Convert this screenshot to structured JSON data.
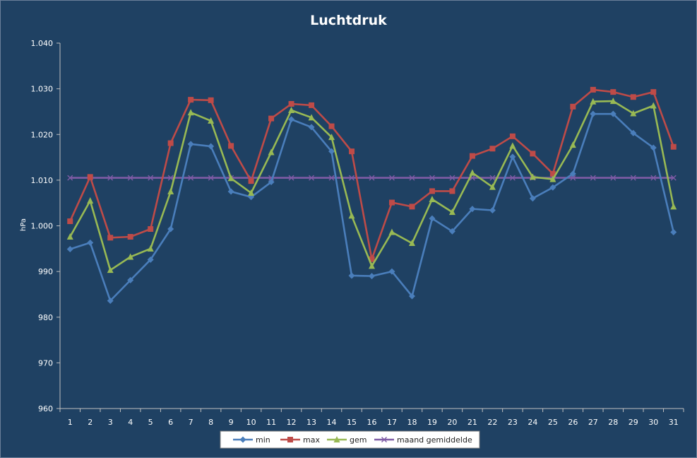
{
  "chart_data": {
    "type": "line",
    "title": "Luchtdruk",
    "xlabel": "",
    "ylabel": "hPa",
    "ylim": [
      960,
      1040
    ],
    "yticks": [
      "960",
      "970",
      "980",
      "990",
      "1.000",
      "1.010",
      "1.020",
      "1.030",
      "1.040"
    ],
    "grid": false,
    "legend": "bottom",
    "categories": [
      "1",
      "2",
      "3",
      "4",
      "5",
      "6",
      "7",
      "8",
      "9",
      "10",
      "11",
      "12",
      "13",
      "14",
      "15",
      "16",
      "17",
      "18",
      "19",
      "20",
      "21",
      "22",
      "23",
      "24",
      "25",
      "26",
      "27",
      "28",
      "29",
      "30",
      "31"
    ],
    "series": [
      {
        "name": "min",
        "color": "#4a7ebb",
        "marker": "diamond",
        "values": [
          994.9,
          996.3,
          983.6,
          988.1,
          992.6,
          999.3,
          1017.9,
          1017.4,
          1007.5,
          1006.3,
          1009.6,
          1023.3,
          1021.6,
          1016.3,
          989.1,
          989.0,
          990.0,
          984.6,
          1001.6,
          998.8,
          1003.7,
          1003.4,
          1015.1,
          1006.0,
          1008.4,
          1011.4,
          1024.5,
          1024.5,
          1020.3,
          1017.1,
          998.6
        ]
      },
      {
        "name": "max",
        "color": "#be4b48",
        "marker": "square",
        "values": [
          1001.0,
          1010.7,
          997.4,
          997.6,
          999.3,
          1018.1,
          1027.6,
          1027.5,
          1017.5,
          1009.8,
          1023.5,
          1026.7,
          1026.4,
          1021.8,
          1016.3,
          992.7,
          1005.1,
          1004.2,
          1007.6,
          1007.6,
          1015.3,
          1016.9,
          1019.6,
          1015.8,
          1011.4,
          1026.1,
          1029.8,
          1029.3,
          1028.2,
          1029.3,
          1017.3
        ]
      },
      {
        "name": "gem",
        "color": "#98b954",
        "marker": "triangle",
        "values": [
          997.6,
          1005.5,
          990.3,
          993.2,
          995.0,
          1007.5,
          1024.8,
          1023.0,
          1010.4,
          1007.2,
          1016.1,
          1025.3,
          1023.7,
          1019.4,
          1002.2,
          991.2,
          998.6,
          996.2,
          1005.8,
          1003.0,
          1011.6,
          1008.5,
          1017.5,
          1010.7,
          1010.2,
          1017.7,
          1027.2,
          1027.3,
          1024.6,
          1026.3,
          1004.2
        ]
      },
      {
        "name": "maand gemiddelde",
        "color": "#7e5ba5",
        "marker": "x",
        "values": [
          1010.5,
          1010.5,
          1010.5,
          1010.5,
          1010.5,
          1010.5,
          1010.5,
          1010.5,
          1010.5,
          1010.5,
          1010.5,
          1010.5,
          1010.5,
          1010.5,
          1010.5,
          1010.5,
          1010.5,
          1010.5,
          1010.5,
          1010.5,
          1010.5,
          1010.5,
          1010.5,
          1010.5,
          1010.5,
          1010.5,
          1010.5,
          1010.5,
          1010.5,
          1010.5,
          1010.5
        ]
      }
    ]
  }
}
